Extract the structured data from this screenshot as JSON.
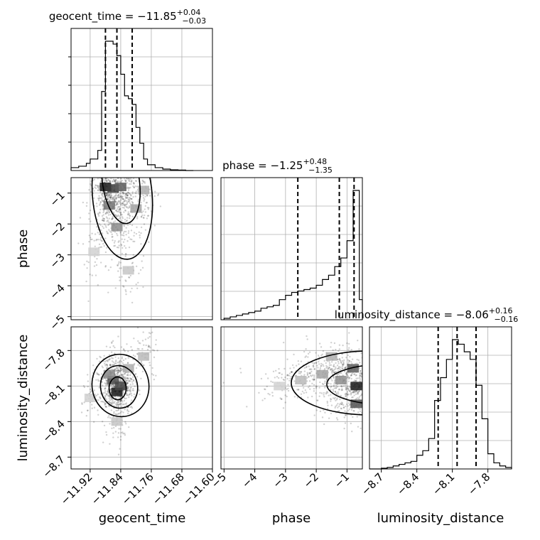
{
  "chart_data": {
    "type": "corner",
    "parameters": [
      "geocent_time",
      "phase",
      "luminosity_distance"
    ],
    "titles": {
      "geocent_time": {
        "name": "geocent_time",
        "median": "−11.85",
        "plus": "+0.04",
        "minus": "−0.03"
      },
      "phase": {
        "name": "phase",
        "median": "−1.25",
        "plus": "+0.48",
        "minus": "−1.35"
      },
      "luminosity_distance": {
        "name": "luminosity_distance",
        "median": "−8.06",
        "plus": "+0.16",
        "minus": "−0.16"
      }
    },
    "axis_labels": {
      "x": [
        "geocent_time",
        "phase",
        "luminosity_distance"
      ],
      "y": [
        "phase",
        "luminosity_distance"
      ]
    },
    "ranges": {
      "geocent_time": [
        -11.97,
        -11.6
      ],
      "phase": [
        -5.1,
        -0.5
      ],
      "luminosity_distance": [
        -8.8,
        -7.6
      ]
    },
    "ticks": {
      "geocent_time": [
        {
          "v": -11.92,
          "t": "−11.92"
        },
        {
          "v": -11.84,
          "t": "−11.84"
        },
        {
          "v": -11.76,
          "t": "−11.76"
        },
        {
          "v": -11.68,
          "t": "−11.68"
        },
        {
          "v": -11.6,
          "t": "−11.60"
        }
      ],
      "phase": [
        {
          "v": -5,
          "t": "−5"
        },
        {
          "v": -4,
          "t": "−4"
        },
        {
          "v": -3,
          "t": "−3"
        },
        {
          "v": -2,
          "t": "−2"
        },
        {
          "v": -1,
          "t": "−1"
        }
      ],
      "luminosity_distance": [
        {
          "v": -8.7,
          "t": "−8.7"
        },
        {
          "v": -8.4,
          "t": "−8.4"
        },
        {
          "v": -8.1,
          "t": "−8.1"
        },
        {
          "v": -7.8,
          "t": "−7.8"
        }
      ]
    },
    "hist_geocent_time": {
      "bin_edges": [
        -11.97,
        -11.95,
        -11.93,
        -11.92,
        -11.9,
        -11.89,
        -11.88,
        -11.87,
        -11.86,
        -11.85,
        -11.84,
        -11.83,
        -11.82,
        -11.81,
        -11.8,
        -11.79,
        -11.78,
        -11.77,
        -11.75,
        -11.73,
        -11.71,
        -11.69,
        -11.67,
        -11.65
      ],
      "counts": [
        0.02,
        0.03,
        0.05,
        0.08,
        0.14,
        0.55,
        0.9,
        0.9,
        0.88,
        0.8,
        0.67,
        0.52,
        0.5,
        0.46,
        0.3,
        0.19,
        0.08,
        0.04,
        0.02,
        0.01,
        0.005,
        0.003,
        0.0
      ],
      "quantiles": [
        -11.88,
        -11.85,
        -11.81
      ]
    },
    "hist_phase": {
      "bin_edges": [
        -5.0,
        -4.8,
        -4.6,
        -4.4,
        -4.2,
        -4.0,
        -3.8,
        -3.6,
        -3.4,
        -3.2,
        -3.0,
        -2.8,
        -2.6,
        -2.4,
        -2.2,
        -2.0,
        -1.8,
        -1.6,
        -1.4,
        -1.2,
        -1.0,
        -0.8,
        -0.6,
        -0.5
      ],
      "counts": [
        0.01,
        0.02,
        0.03,
        0.04,
        0.05,
        0.06,
        0.08,
        0.09,
        0.1,
        0.14,
        0.17,
        0.19,
        0.2,
        0.21,
        0.22,
        0.24,
        0.28,
        0.31,
        0.37,
        0.43,
        0.55,
        0.9,
        0.14
      ],
      "quantiles": [
        -2.6,
        -1.25,
        -0.77
      ]
    },
    "hist_luminosity_distance": {
      "bin_edges": [
        -8.8,
        -8.75,
        -8.7,
        -8.65,
        -8.6,
        -8.55,
        -8.5,
        -8.45,
        -8.4,
        -8.35,
        -8.3,
        -8.25,
        -8.2,
        -8.15,
        -8.1,
        -8.05,
        -8.0,
        -7.95,
        -7.9,
        -7.85,
        -7.8,
        -7.75,
        -7.7,
        -7.65,
        -7.6
      ],
      "counts": [
        0.0,
        0.0,
        0.005,
        0.01,
        0.02,
        0.03,
        0.04,
        0.05,
        0.09,
        0.12,
        0.2,
        0.45,
        0.6,
        0.72,
        0.85,
        0.82,
        0.77,
        0.72,
        0.55,
        0.33,
        0.1,
        0.04,
        0.02,
        0.01
      ],
      "quantiles": [
        -8.22,
        -8.06,
        -7.9
      ]
    },
    "density_geocent_phase": {
      "points": [
        [
          -11.88,
          -0.8,
          1.0
        ],
        [
          -11.86,
          -0.85,
          0.85
        ],
        [
          -11.84,
          -0.8,
          0.7
        ],
        [
          -11.87,
          -1.4,
          0.6
        ],
        [
          -11.85,
          -2.1,
          0.5
        ],
        [
          -11.8,
          -1.5,
          0.4
        ],
        [
          -11.82,
          -3.5,
          0.25
        ],
        [
          -11.91,
          -2.9,
          0.2
        ],
        [
          -11.78,
          -0.9,
          0.35
        ]
      ]
    },
    "density_geocent_lum": {
      "points": [
        [
          -11.85,
          -8.15,
          1.0
        ],
        [
          -11.86,
          -8.05,
          0.75
        ],
        [
          -11.84,
          -8.1,
          0.8
        ],
        [
          -11.87,
          -8.0,
          0.5
        ],
        [
          -11.82,
          -7.95,
          0.35
        ],
        [
          -11.78,
          -7.85,
          0.3
        ],
        [
          -11.92,
          -8.2,
          0.2
        ],
        [
          -11.85,
          -8.4,
          0.25
        ]
      ]
    },
    "density_phase_lum": {
      "points": [
        [
          -0.7,
          -8.1,
          1.0
        ],
        [
          -0.8,
          -7.95,
          0.7
        ],
        [
          -0.7,
          -8.25,
          0.75
        ],
        [
          -1.2,
          -8.05,
          0.5
        ],
        [
          -1.8,
          -8.0,
          0.4
        ],
        [
          -2.5,
          -8.05,
          0.3
        ],
        [
          -3.2,
          -8.1,
          0.2
        ],
        [
          -1.5,
          -7.85,
          0.35
        ]
      ]
    }
  }
}
